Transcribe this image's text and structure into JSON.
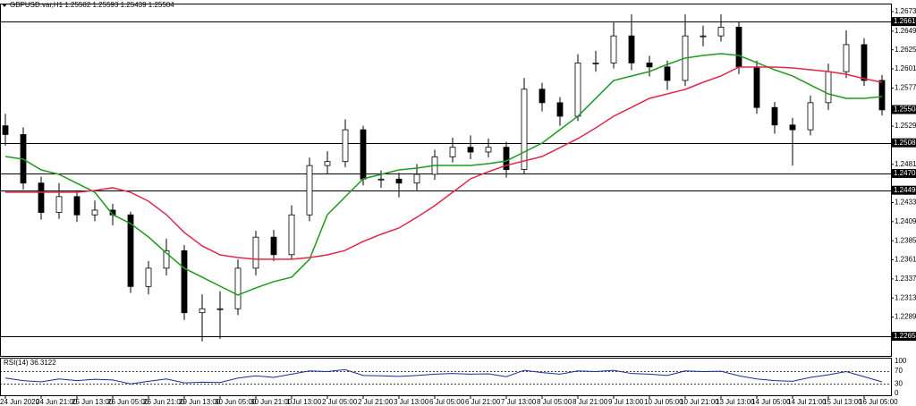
{
  "chart_data": {
    "type": "candlestick",
    "title": "GBPUSD.var,H1 1.25582 1.25593 1.25439 1.25504",
    "categories": [
      "24 Jun 2020",
      null,
      "24 Jun 21:00",
      null,
      "25 Jun 13:00",
      null,
      "26 Jun 05:00",
      null,
      "26 Jun 21:00",
      null,
      "29 Jun 13:00",
      null,
      "30 Jun 05:00",
      null,
      "30 Jun 21:00",
      null,
      "1 Jul 13:00",
      null,
      "2 Jul 05:00",
      null,
      "2 Jul 21:00",
      null,
      "3 Jul 13:00",
      null,
      "6 Jul 05:00",
      null,
      "6 Jul 21:00",
      null,
      "7 Jul 13:00",
      null,
      "8 Jul 05:00",
      null,
      "8 Jul 21:00",
      null,
      "9 Jul 13:00",
      null,
      "10 Jul 05:00",
      null,
      "10 Jul 21:00",
      null,
      "13 Jul 13:00",
      null,
      "14 Jul 05:00",
      null,
      "14 Jul 21:00",
      null,
      "15 Jul 13:00",
      null,
      "16 Jul 05:00",
      null
    ],
    "open": [
      1.253,
      1.2519,
      1.2458,
      1.2421,
      1.2441,
      1.2418,
      1.2424,
      1.2418,
      1.2328,
      1.2351,
      1.2373,
      1.2295,
      1.23,
      1.23,
      1.2351,
      1.239,
      1.2368,
      1.2418,
      1.248,
      1.2485,
      1.2525,
      1.2463,
      1.2463,
      1.2458,
      1.2469,
      1.2491,
      1.2503,
      1.2497,
      1.2503,
      1.2475,
      1.2576,
      1.2559,
      1.2542,
      1.2609,
      1.2609,
      1.2643,
      1.2609,
      1.2604,
      1.2587,
      1.2643,
      1.2643,
      1.2654,
      1.2604,
      1.2553,
      1.2531,
      1.2525,
      1.2559,
      1.2598,
      1.2632,
      1.2587
    ],
    "high": [
      1.2545,
      1.2528,
      1.2466,
      1.2458,
      1.2449,
      1.2436,
      1.2432,
      1.2422,
      1.236,
      1.2388,
      1.238,
      1.2318,
      1.2322,
      1.2362,
      1.2398,
      1.2399,
      1.243,
      1.249,
      1.2498,
      1.2538,
      1.253,
      1.2474,
      1.2471,
      1.2482,
      1.25,
      1.2515,
      1.2518,
      1.2514,
      1.251,
      1.259,
      1.2584,
      1.2566,
      1.262,
      1.2624,
      1.266,
      1.267,
      1.2618,
      1.2612,
      1.267,
      1.2656,
      1.267,
      1.266,
      1.2612,
      1.256,
      1.254,
      1.2568,
      1.2608,
      1.265,
      1.264,
      1.2594
    ],
    "low": [
      1.2505,
      1.245,
      1.2412,
      1.2413,
      1.2409,
      1.241,
      1.2405,
      1.232,
      1.2318,
      1.2342,
      1.2286,
      1.2259,
      1.2262,
      1.2292,
      1.2342,
      1.236,
      1.2362,
      1.241,
      1.247,
      1.2478,
      1.2455,
      1.2452,
      1.244,
      1.2448,
      1.2462,
      1.2484,
      1.2488,
      1.249,
      1.2465,
      1.247,
      1.2548,
      1.253,
      1.2536,
      1.2598,
      1.2602,
      1.26,
      1.2592,
      1.2575,
      1.258,
      1.263,
      1.2636,
      1.2595,
      1.2545,
      1.252,
      1.248,
      1.2518,
      1.255,
      1.259,
      1.258,
      1.2543
    ],
    "close": [
      1.2519,
      1.2458,
      1.2421,
      1.2441,
      1.2418,
      1.2424,
      1.2418,
      1.2328,
      1.2351,
      1.2373,
      1.2295,
      1.23,
      1.23,
      1.2351,
      1.239,
      1.2368,
      1.2418,
      1.248,
      1.2485,
      1.2525,
      1.2463,
      1.2463,
      1.2458,
      1.2469,
      1.2491,
      1.2503,
      1.2497,
      1.2503,
      1.2475,
      1.2576,
      1.2559,
      1.2542,
      1.2609,
      1.2609,
      1.2643,
      1.2609,
      1.2604,
      1.2587,
      1.2643,
      1.2643,
      1.2654,
      1.2604,
      1.2553,
      1.2531,
      1.2525,
      1.2559,
      1.2598,
      1.2632,
      1.2587,
      1.255
    ],
    "moving_averages": [
      {
        "color": "#1f9a1f",
        "values": [
          1.24914,
          1.2488,
          1.24745,
          1.24689,
          1.24577,
          1.24464,
          1.24183,
          1.24071,
          1.23902,
          1.237,
          1.23509,
          1.23397,
          1.23284,
          1.23172,
          1.23262,
          1.23341,
          1.23397,
          1.23622,
          1.24183,
          1.24408,
          1.24633,
          1.24689,
          1.24745,
          1.24768,
          1.24802,
          1.24802,
          1.24802,
          1.24824,
          1.24858,
          1.2497,
          1.25083,
          1.25251,
          1.2542,
          1.25645,
          1.25869,
          1.25926,
          1.25982,
          1.26072,
          1.26151,
          1.26184,
          1.26207,
          1.26184,
          1.26094,
          1.26004,
          1.25926,
          1.25813,
          1.25701,
          1.25645,
          1.25645,
          1.25667
        ]
      },
      {
        "color": "#e0284a",
        "values": [
          1.24464,
          1.24464,
          1.24464,
          1.24464,
          1.24464,
          1.24487,
          1.24521,
          1.24464,
          1.24352,
          1.24183,
          1.23959,
          1.2379,
          1.23677,
          1.23644,
          1.23622,
          1.23622,
          1.23622,
          1.23644,
          1.23677,
          1.23734,
          1.23846,
          1.23936,
          1.24015,
          1.2415,
          1.24296,
          1.24464,
          1.24633,
          1.24723,
          1.24802,
          1.24858,
          1.24914,
          1.25026,
          1.25139,
          1.25274,
          1.2542,
          1.25532,
          1.25645,
          1.25701,
          1.25757,
          1.25847,
          1.25926,
          1.26038,
          1.26038,
          1.26038,
          1.26027,
          1.26004,
          1.25982,
          1.25948,
          1.25892,
          1.25847
        ]
      }
    ],
    "ylim": [
      1.22407,
      1.26825
    ],
    "yticks": [
      1.26735,
      {
        "value": 1.2649,
        "label": "1.26490"
      },
      1.26255,
      1.26015,
      1.25775,
      1.25295,
      1.24815,
      1.24335,
      1.24095,
      1.23855,
      1.23615,
      1.23375,
      1.23135,
      1.22895
    ],
    "levels": [
      {
        "value": 1.2661,
        "label": "1.26610"
      },
      1.25086,
      1.24701,
      {
        "value": 1.2449,
        "label": "1.24490"
      },
      1.22654
    ],
    "current_price": 1.25504,
    "rsi": {
      "label": "RSI(14) 36.3122",
      "color": "#1a2a9a",
      "values": [
        48,
        40,
        36,
        45,
        40,
        44,
        42,
        30,
        38,
        45,
        33,
        35,
        34,
        48,
        55,
        50,
        60,
        70,
        68,
        74,
        56,
        55,
        53,
        56,
        60,
        62,
        60,
        61,
        52,
        72,
        65,
        60,
        70,
        68,
        72,
        62,
        60,
        56,
        70,
        68,
        69,
        55,
        45,
        40,
        38,
        50,
        58,
        68,
        52,
        36
      ],
      "ylim": [
        0,
        100
      ],
      "yticks": [
        100,
        70,
        30,
        0
      ]
    }
  }
}
